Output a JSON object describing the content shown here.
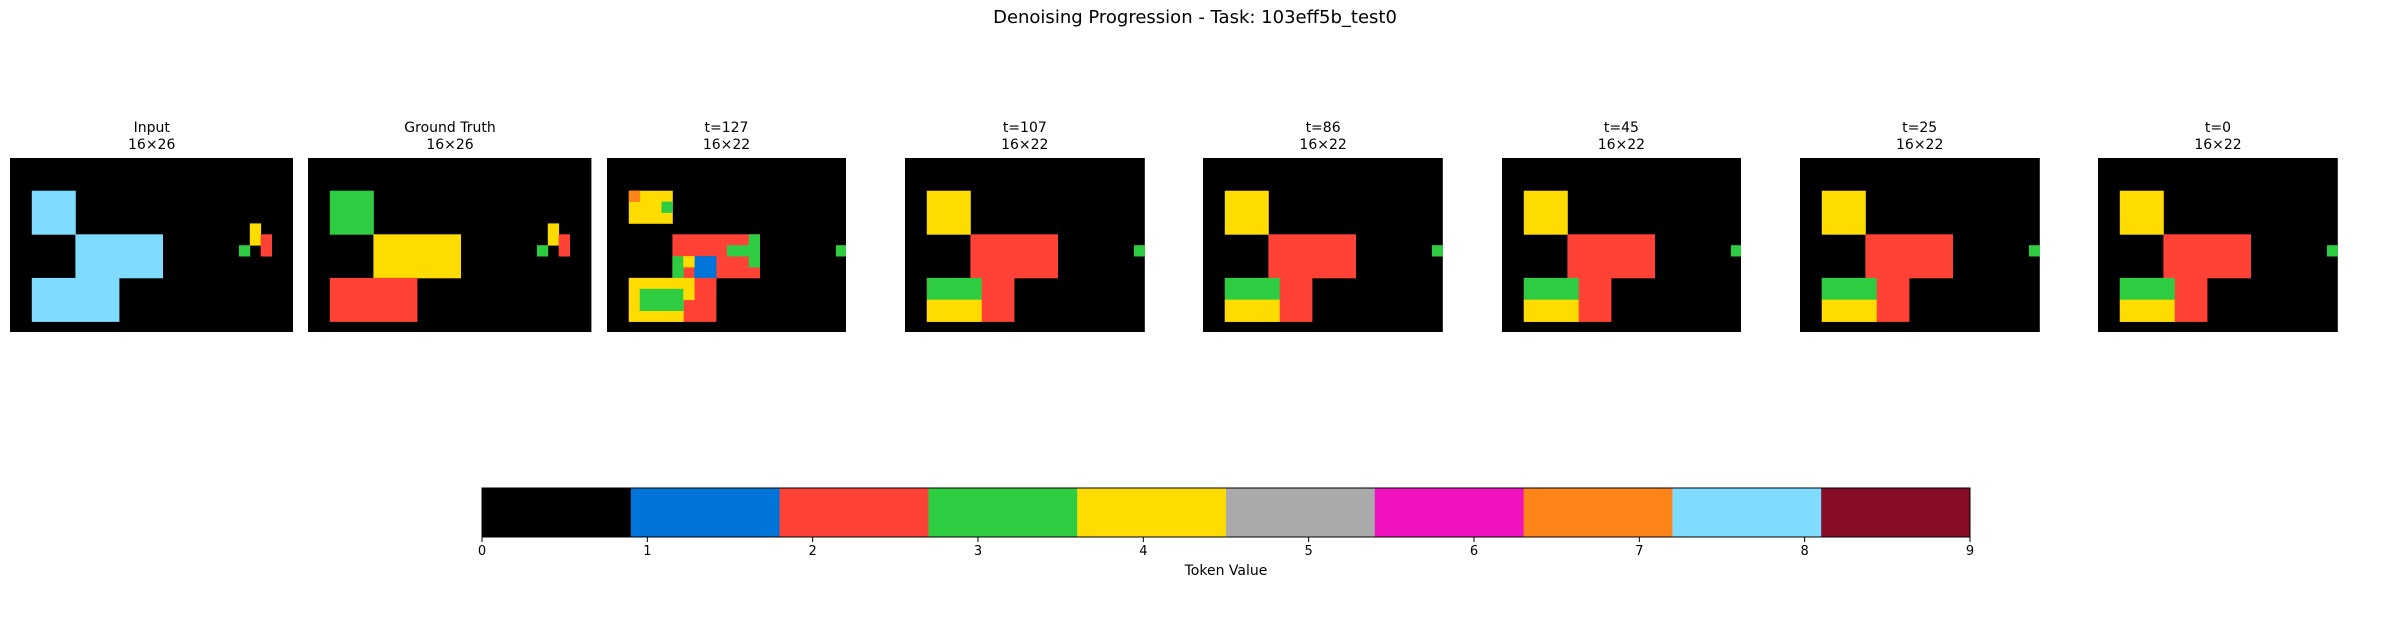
{
  "figure": {
    "title": "Denoising Progression - Task: 103eff5b_test0"
  },
  "colors": {
    "palette": [
      "#000000",
      "#0074D9",
      "#FF4136",
      "#2ECC40",
      "#FFDC00",
      "#AAAAAA",
      "#F012BE",
      "#FF851B",
      "#7FDBFF",
      "#870C25"
    ]
  },
  "panels": [
    {
      "title": "Input",
      "size": "16×26",
      "rows": 16,
      "cols": 26,
      "rects": [
        {
          "r": 3,
          "c": 2,
          "h": 4,
          "w": 4,
          "v": 8
        },
        {
          "r": 7,
          "c": 6,
          "h": 4,
          "w": 8,
          "v": 8
        },
        {
          "r": 11,
          "c": 2,
          "h": 4,
          "w": 8,
          "v": 8
        },
        {
          "r": 6,
          "c": 22,
          "h": 1,
          "w": 1,
          "v": 4
        },
        {
          "r": 7,
          "c": 22,
          "h": 1,
          "w": 1,
          "v": 4
        },
        {
          "r": 7,
          "c": 23,
          "h": 2,
          "w": 1,
          "v": 2
        },
        {
          "r": 8,
          "c": 21,
          "h": 1,
          "w": 1,
          "v": 3
        }
      ]
    },
    {
      "title": "Ground Truth",
      "size": "16×26",
      "rows": 16,
      "cols": 26,
      "rects": [
        {
          "r": 3,
          "c": 2,
          "h": 4,
          "w": 4,
          "v": 3
        },
        {
          "r": 7,
          "c": 6,
          "h": 4,
          "w": 8,
          "v": 4
        },
        {
          "r": 11,
          "c": 2,
          "h": 4,
          "w": 8,
          "v": 2
        },
        {
          "r": 6,
          "c": 22,
          "h": 1,
          "w": 1,
          "v": 4
        },
        {
          "r": 7,
          "c": 22,
          "h": 1,
          "w": 1,
          "v": 4
        },
        {
          "r": 7,
          "c": 23,
          "h": 2,
          "w": 1,
          "v": 2
        },
        {
          "r": 8,
          "c": 21,
          "h": 1,
          "w": 1,
          "v": 3
        }
      ]
    },
    {
      "title": "t=127",
      "size": "16×22",
      "rows": 16,
      "cols": 22,
      "rects": [
        {
          "r": 3,
          "c": 2,
          "h": 3,
          "w": 4,
          "v": 4
        },
        {
          "r": 3,
          "c": 2,
          "h": 1,
          "w": 1,
          "v": 7
        },
        {
          "r": 4,
          "c": 5,
          "h": 1,
          "w": 1,
          "v": 3
        },
        {
          "r": 7,
          "c": 6,
          "h": 4,
          "w": 8,
          "v": 2
        },
        {
          "r": 7,
          "c": 13,
          "h": 3,
          "w": 1,
          "v": 3
        },
        {
          "r": 8,
          "c": 11,
          "h": 1,
          "w": 2,
          "v": 3
        },
        {
          "r": 9,
          "c": 6,
          "h": 2,
          "w": 1,
          "v": 3
        },
        {
          "r": 9,
          "c": 8,
          "h": 3,
          "w": 2,
          "v": 1
        },
        {
          "r": 9,
          "c": 7,
          "h": 1,
          "w": 1,
          "v": 4
        },
        {
          "r": 11,
          "c": 2,
          "h": 4,
          "w": 8,
          "v": 2
        },
        {
          "r": 11,
          "c": 2,
          "h": 4,
          "w": 5,
          "v": 4
        },
        {
          "r": 12,
          "c": 3,
          "h": 2,
          "w": 4,
          "v": 3
        },
        {
          "r": 11,
          "c": 7,
          "h": 2,
          "w": 1,
          "v": 4
        },
        {
          "r": 8,
          "c": 21,
          "h": 1,
          "w": 1,
          "v": 3
        }
      ]
    },
    {
      "title": "t=107",
      "size": "16×22",
      "rows": 16,
      "cols": 22,
      "rects": [
        {
          "r": 3,
          "c": 2,
          "h": 4,
          "w": 4,
          "v": 4
        },
        {
          "r": 7,
          "c": 6,
          "h": 4,
          "w": 8,
          "v": 2
        },
        {
          "r": 11,
          "c": 2,
          "h": 4,
          "w": 8,
          "v": 2
        },
        {
          "r": 11,
          "c": 2,
          "h": 2,
          "w": 5,
          "v": 3
        },
        {
          "r": 13,
          "c": 2,
          "h": 2,
          "w": 5,
          "v": 4
        },
        {
          "r": 8,
          "c": 21,
          "h": 1,
          "w": 1,
          "v": 3
        }
      ]
    },
    {
      "title": "t=86",
      "size": "16×22",
      "rows": 16,
      "cols": 22,
      "rects": [
        {
          "r": 3,
          "c": 2,
          "h": 4,
          "w": 4,
          "v": 4
        },
        {
          "r": 7,
          "c": 6,
          "h": 4,
          "w": 8,
          "v": 2
        },
        {
          "r": 11,
          "c": 2,
          "h": 4,
          "w": 8,
          "v": 2
        },
        {
          "r": 11,
          "c": 2,
          "h": 2,
          "w": 5,
          "v": 3
        },
        {
          "r": 13,
          "c": 2,
          "h": 2,
          "w": 5,
          "v": 4
        },
        {
          "r": 8,
          "c": 21,
          "h": 1,
          "w": 1,
          "v": 3
        }
      ]
    },
    {
      "title": "t=45",
      "size": "16×22",
      "rows": 16,
      "cols": 22,
      "rects": [
        {
          "r": 3,
          "c": 2,
          "h": 4,
          "w": 4,
          "v": 4
        },
        {
          "r": 7,
          "c": 6,
          "h": 4,
          "w": 8,
          "v": 2
        },
        {
          "r": 11,
          "c": 2,
          "h": 4,
          "w": 8,
          "v": 2
        },
        {
          "r": 11,
          "c": 2,
          "h": 2,
          "w": 5,
          "v": 3
        },
        {
          "r": 13,
          "c": 2,
          "h": 2,
          "w": 5,
          "v": 4
        },
        {
          "r": 8,
          "c": 21,
          "h": 1,
          "w": 1,
          "v": 3
        }
      ]
    },
    {
      "title": "t=25",
      "size": "16×22",
      "rows": 16,
      "cols": 22,
      "rects": [
        {
          "r": 3,
          "c": 2,
          "h": 4,
          "w": 4,
          "v": 4
        },
        {
          "r": 7,
          "c": 6,
          "h": 4,
          "w": 8,
          "v": 2
        },
        {
          "r": 11,
          "c": 2,
          "h": 4,
          "w": 8,
          "v": 2
        },
        {
          "r": 11,
          "c": 2,
          "h": 2,
          "w": 5,
          "v": 3
        },
        {
          "r": 13,
          "c": 2,
          "h": 2,
          "w": 5,
          "v": 4
        },
        {
          "r": 8,
          "c": 21,
          "h": 1,
          "w": 1,
          "v": 3
        }
      ]
    },
    {
      "title": "t=0",
      "size": "16×22",
      "rows": 16,
      "cols": 22,
      "rects": [
        {
          "r": 3,
          "c": 2,
          "h": 4,
          "w": 4,
          "v": 4
        },
        {
          "r": 7,
          "c": 6,
          "h": 4,
          "w": 8,
          "v": 2
        },
        {
          "r": 11,
          "c": 2,
          "h": 4,
          "w": 8,
          "v": 2
        },
        {
          "r": 11,
          "c": 2,
          "h": 2,
          "w": 5,
          "v": 3
        },
        {
          "r": 13,
          "c": 2,
          "h": 2,
          "w": 5,
          "v": 4
        },
        {
          "r": 8,
          "c": 21,
          "h": 1,
          "w": 1,
          "v": 3
        }
      ]
    }
  ],
  "colorbar": {
    "label": "Token Value",
    "min": 0,
    "max": 9,
    "ticks": [
      "0",
      "1",
      "2",
      "3",
      "4",
      "5",
      "6",
      "7",
      "8",
      "9"
    ]
  }
}
